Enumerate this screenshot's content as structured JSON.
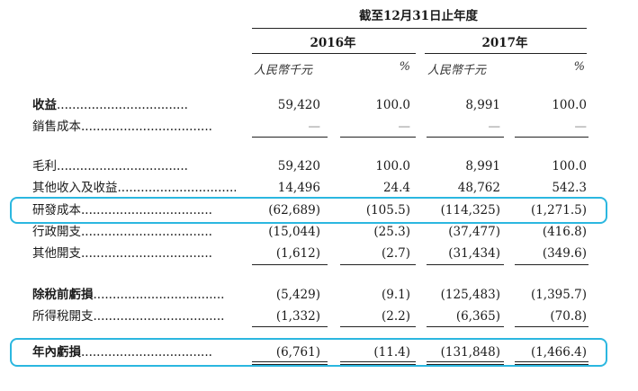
{
  "header": {
    "period_title": "截至12月31日止年度",
    "year_2016": "2016年",
    "year_2017": "2017年",
    "unit_rmb": "人民幣千元",
    "unit_pct": "%"
  },
  "rows": [
    {
      "label": "收益",
      "dots": "..................................",
      "v1": "59,420",
      "p1": "100.0",
      "v2": "8,991",
      "p2": "100.0"
    },
    {
      "label": "銷售成本",
      "dots": "..................................",
      "v1": "—",
      "p1": "—",
      "v2": "—",
      "p2": "—"
    },
    {
      "label": "毛利",
      "dots": "..................................",
      "v1": "59,420",
      "p1": "100.0",
      "v2": "8,991",
      "p2": "100.0"
    },
    {
      "label": "其他收入及收益",
      "dots": "..................................",
      "v1": "14,496",
      "p1": "24.4",
      "v2": "48,762",
      "p2": "542.3"
    },
    {
      "label": "研發成本",
      "dots": "..................................",
      "v1": "(62,689)",
      "p1": "(105.5)",
      "v2": "(114,325)",
      "p2": "(1,271.5)"
    },
    {
      "label": "行政開支",
      "dots": "..................................",
      "v1": "(15,044)",
      "p1": "(25.3)",
      "v2": "(37,477)",
      "p2": "(416.8)"
    },
    {
      "label": "其他開支",
      "dots": "..................................",
      "v1": "(1,612)",
      "p1": "(2.7)",
      "v2": "(31,434)",
      "p2": "(349.6)"
    },
    {
      "label": "除稅前虧損",
      "dots": "..................................",
      "v1": "(5,429)",
      "p1": "(9.1)",
      "v2": "(125,483)",
      "p2": "(1,395.7)"
    },
    {
      "label": "所得稅開支",
      "dots": "..................................",
      "v1": "(1,332)",
      "p1": "(2.2)",
      "v2": "(6,365)",
      "p2": "(70.8)"
    },
    {
      "label": "年內虧損",
      "dots": "..................................",
      "v1": "(6,761)",
      "p1": "(11.4)",
      "v2": "(131,848)",
      "p2": "(1,466.4)"
    }
  ],
  "colors": {
    "highlight": "#2bb7e0",
    "text": "#1a1a1a"
  }
}
